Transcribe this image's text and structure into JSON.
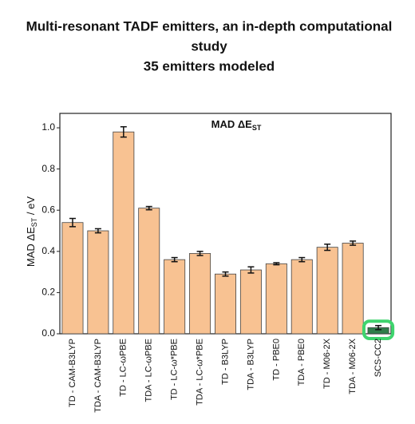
{
  "chart_data": {
    "type": "bar",
    "title": [
      "Multi-resonant TADF emitters, an in-depth computational",
      "study",
      "35 emitters modeled"
    ],
    "plot_title": {
      "text": "MAD ΔE",
      "subscript": "ST"
    },
    "y_label": {
      "text": "MAD ΔE",
      "subscript": "ST",
      "suffix": " / eV"
    },
    "categories": [
      "TD - CAM-B3LYP",
      "TDA - CAM-B3LYP",
      "TD - LC-ωPBE",
      "TDA - LC-ωPBE",
      "TD - LC-ω*PBE",
      "TDA - LC-ω*PBE",
      "TD - B3LYP",
      "TDA - B3LYP",
      "TD - PBE0",
      "TDA - PBE0",
      "TD - M06-2X",
      "TDA - M06-2X",
      "SCS-CC2"
    ],
    "values": [
      0.54,
      0.5,
      0.98,
      0.61,
      0.36,
      0.39,
      0.29,
      0.31,
      0.34,
      0.36,
      0.42,
      0.44,
      0.03
    ],
    "errors": [
      0.02,
      0.01,
      0.025,
      0.008,
      0.01,
      0.01,
      0.01,
      0.015,
      0.005,
      0.01,
      0.015,
      0.01,
      0.01
    ],
    "colors": [
      "#f8c292",
      "#f8c292",
      "#f8c292",
      "#f8c292",
      "#f8c292",
      "#f8c292",
      "#f8c292",
      "#f8c292",
      "#f8c292",
      "#f8c292",
      "#f8c292",
      "#f8c292",
      "#2f7d4a"
    ],
    "highlight_color": "#3fd46e",
    "ylim": [
      0,
      1.07
    ],
    "yticks": [
      {
        "value": 0,
        "label": "0.0"
      },
      0.2,
      0.4,
      0.6,
      0.8,
      {
        "value": 1,
        "label": "1.0"
      }
    ]
  }
}
